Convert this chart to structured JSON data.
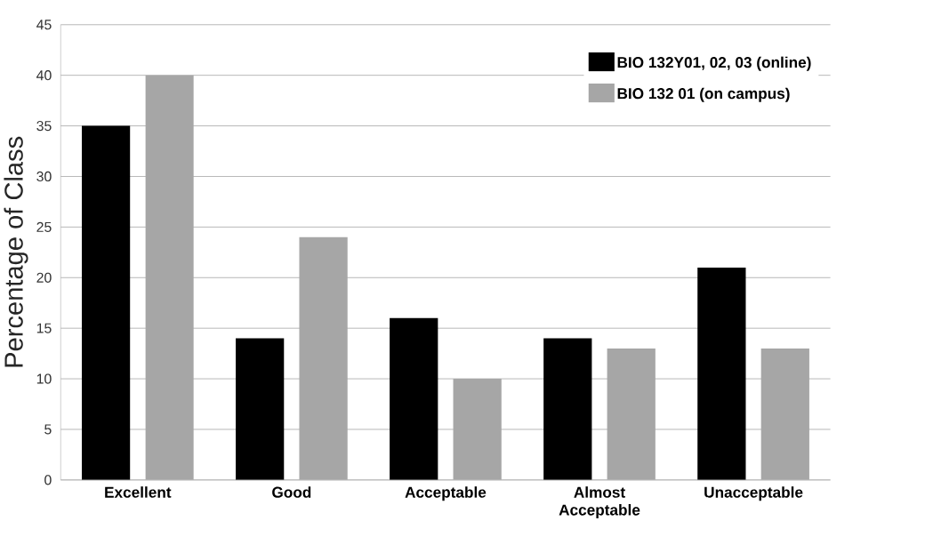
{
  "chart_data": {
    "type": "bar",
    "ylabel": "Percentage of Class",
    "categories": [
      "Excellent",
      "Good",
      "Acceptable",
      "Almost Acceptable",
      "Unacceptable"
    ],
    "series": [
      {
        "name": "BIO 132Y01, 02, 03 (online)",
        "color": "#000000",
        "values": [
          35,
          14,
          16,
          14,
          21
        ]
      },
      {
        "name": "BIO 132 01 (on campus)",
        "color": "#a6a6a6",
        "values": [
          40,
          24,
          10,
          13,
          13
        ]
      }
    ],
    "ylim": [
      0,
      45
    ],
    "yticks": [
      0,
      5,
      10,
      15,
      20,
      25,
      30,
      35,
      40,
      45
    ],
    "grid": "y",
    "legend": "top right"
  }
}
